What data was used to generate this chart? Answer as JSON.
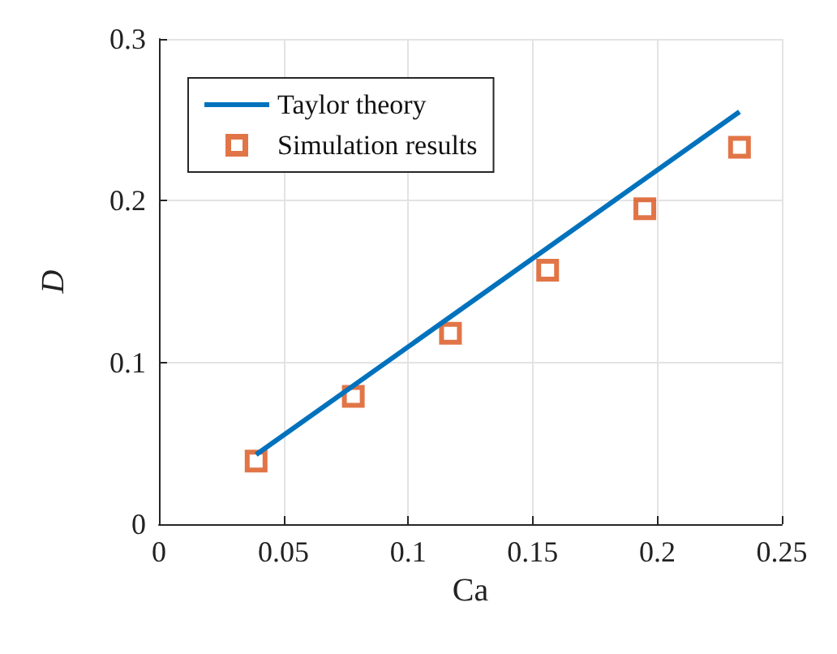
{
  "chart_data": {
    "type": "scatter",
    "xlabel": "Ca",
    "ylabel": "D",
    "xlim": [
      0,
      0.25
    ],
    "xticks": [
      0,
      0.05,
      0.1,
      0.15,
      0.2,
      0.25
    ],
    "ylim": [
      0,
      0.3
    ],
    "yticks": [
      0,
      0.1,
      0.2,
      0.3
    ],
    "grid": true,
    "legend": "top left",
    "series": [
      {
        "name": "Taylor theory",
        "type": "line",
        "color": "#0072bd",
        "marker": "none",
        "line_style": "solid",
        "x": [
          0.039,
          0.233
        ],
        "values": [
          0.043,
          0.255
        ]
      },
      {
        "name": "Simulation results",
        "color": "#d95319",
        "marker": "square",
        "x": [
          0.039,
          0.078,
          0.117,
          0.156,
          0.195,
          0.233
        ],
        "values": [
          0.039,
          0.079,
          0.118,
          0.157,
          0.195,
          0.233
        ]
      }
    ]
  }
}
